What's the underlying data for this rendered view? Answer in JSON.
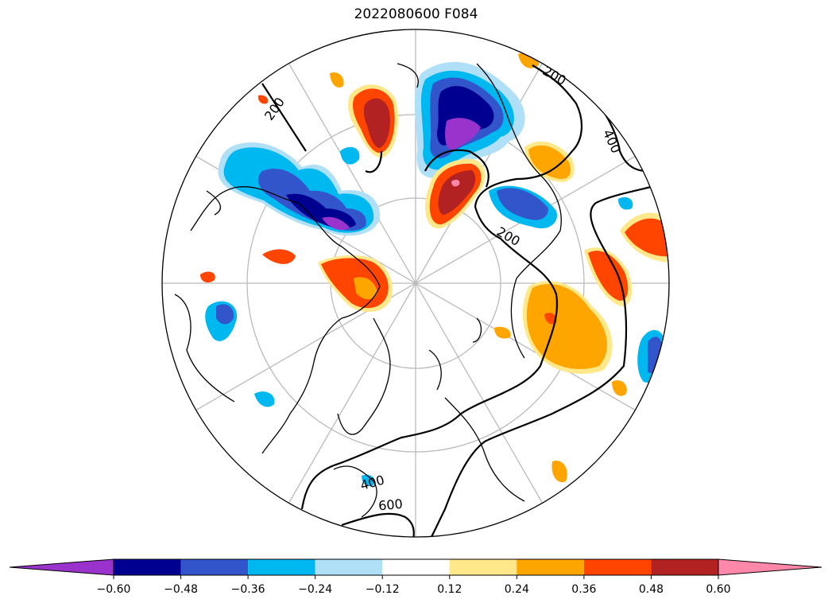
{
  "figure": {
    "title": "2022080600 F084"
  },
  "map": {
    "projection": "north-polar-stereographic",
    "graticule": true,
    "contour_labels": [
      "200",
      "200",
      "400",
      "200",
      "400",
      "600"
    ]
  },
  "colorbar": {
    "orientation": "horizontal",
    "extend": "both",
    "ticks": [
      "−0.60",
      "−0.48",
      "−0.36",
      "−0.24",
      "−0.12",
      "0.12",
      "0.24",
      "0.36",
      "0.48",
      "0.60"
    ],
    "colors": [
      "#9933cc",
      "#000090",
      "#3355cc",
      "#00b8f0",
      "#b0e0f8",
      "#ffffff",
      "#ffe88a",
      "#ffa500",
      "#ff4500",
      "#b22222",
      "#ff88aa"
    ]
  },
  "palette": {
    "land_outline": "#000000",
    "graticule": "#bbbbbb",
    "contour": "#000000"
  }
}
